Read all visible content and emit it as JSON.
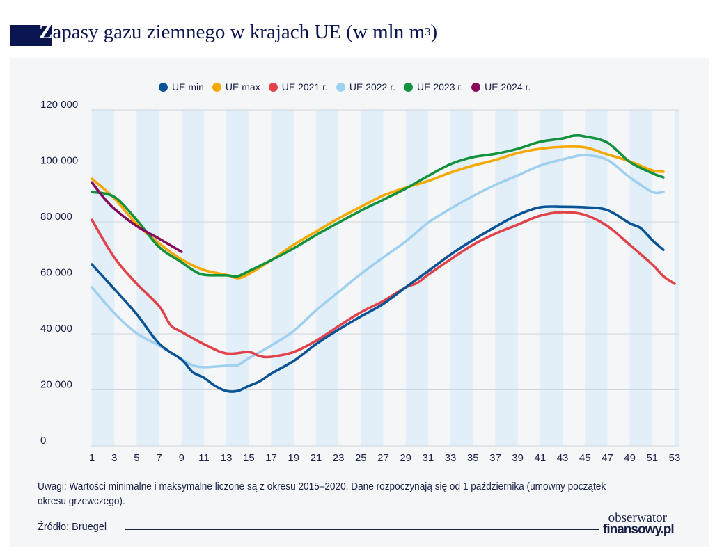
{
  "title": {
    "first_letter": "Z",
    "rest": "apasy gazu ziemnego w krajach UE (w mln m",
    "superscript": "3",
    "closing": ")"
  },
  "note": "Uwagi: Wartości minimalne i maksymalne liczone są z okresu 2015–2020. Dane rozpoczynają się od 1 października (umowny początek okresu grzewczego).",
  "source": "Źródło: Bruegel",
  "logo": {
    "line1": "obserwator",
    "line2": "finansowy.pl"
  },
  "colors": {
    "background": "#f4f6f8",
    "stripe": "#e2eef8",
    "grid": "#cfd6de",
    "title": "#0b1650"
  },
  "chart_data": {
    "type": "line",
    "title": "Zapasy gazu ziemnego w krajach UE (w mln m3)",
    "xlabel": "",
    "ylabel": "",
    "xlim": [
      1,
      53
    ],
    "ylim": [
      0,
      120000
    ],
    "xticks": [
      "1",
      "3",
      "5",
      "7",
      "9",
      "11",
      "13",
      "15",
      "17",
      "19",
      "21",
      "23",
      "25",
      "27",
      "29",
      "31",
      "33",
      "35",
      "37",
      "39",
      "41",
      "43",
      "45",
      "47",
      "49",
      "51",
      "53"
    ],
    "yticks": [
      "0",
      "20 000",
      "40 000",
      "60 000",
      "80 000",
      "100 000",
      "120 000"
    ],
    "ytick_values": [
      0,
      20000,
      40000,
      60000,
      80000,
      100000,
      120000
    ],
    "grid": "horizontal",
    "legend_position": "top",
    "series": [
      {
        "name": "UE min",
        "color": "#0a5496",
        "x": [
          1,
          3,
          5,
          7,
          9,
          10,
          11,
          12,
          13,
          14,
          15,
          16,
          17,
          19,
          21,
          23,
          25,
          27,
          29,
          31,
          33,
          35,
          37,
          39,
          41,
          43,
          45,
          47,
          49,
          50,
          51,
          52
        ],
        "y": [
          64800,
          56000,
          47000,
          36500,
          30800,
          26300,
          24300,
          21400,
          19600,
          19600,
          21400,
          23100,
          25800,
          30300,
          36300,
          41500,
          46200,
          50700,
          56600,
          62400,
          68300,
          73500,
          78200,
          82500,
          85200,
          85400,
          85200,
          84200,
          79500,
          77700,
          73500,
          70000
        ]
      },
      {
        "name": "UE max",
        "color": "#f5a800",
        "x": [
          1,
          3,
          5,
          7,
          9,
          11,
          13,
          14,
          15,
          17,
          19,
          21,
          23,
          25,
          27,
          29,
          31,
          33,
          35,
          37,
          39,
          41,
          43,
          45,
          47,
          49,
          51,
          52
        ],
        "y": [
          95400,
          88400,
          79200,
          72300,
          66600,
          62800,
          61100,
          59900,
          61400,
          66300,
          71800,
          76500,
          81200,
          85400,
          89400,
          92200,
          94600,
          97600,
          100100,
          102100,
          104600,
          106100,
          106800,
          106600,
          104100,
          101600,
          98400,
          97900
        ]
      },
      {
        "name": "UE 2021 r.",
        "color": "#e0434a",
        "x": [
          1,
          3,
          5,
          7,
          8,
          9,
          11,
          13,
          15,
          16,
          17,
          19,
          21,
          23,
          25,
          27,
          29,
          30,
          31,
          33,
          35,
          37,
          39,
          41,
          43,
          45,
          47,
          49,
          51,
          52,
          53
        ],
        "y": [
          80700,
          67300,
          57900,
          49900,
          43200,
          40700,
          36300,
          33000,
          33500,
          32000,
          31800,
          33500,
          37500,
          42700,
          47700,
          51700,
          56600,
          58100,
          61100,
          66600,
          71800,
          75800,
          79000,
          82200,
          83500,
          82500,
          78500,
          71800,
          64800,
          60600,
          57900
        ]
      },
      {
        "name": "UE 2022 r.",
        "color": "#9fd0ef",
        "x": [
          1,
          3,
          5,
          7,
          9,
          10,
          11,
          13,
          14,
          15,
          17,
          19,
          21,
          23,
          25,
          27,
          29,
          31,
          33,
          35,
          37,
          39,
          41,
          43,
          45,
          47,
          49,
          51,
          52
        ],
        "y": [
          56600,
          47400,
          40200,
          35800,
          31000,
          28800,
          28100,
          28600,
          28800,
          31300,
          35800,
          41000,
          48400,
          54900,
          61400,
          67300,
          73000,
          79700,
          84700,
          89200,
          93200,
          96600,
          100100,
          102300,
          103800,
          102100,
          95900,
          90700,
          90700
        ]
      },
      {
        "name": "UE 2023 r.",
        "color": "#12923c",
        "x": [
          1,
          3,
          5,
          7,
          9,
          10,
          11,
          13,
          14,
          15,
          17,
          19,
          21,
          23,
          25,
          27,
          29,
          31,
          33,
          35,
          37,
          39,
          41,
          43,
          44,
          45,
          47,
          49,
          51,
          52
        ],
        "y": [
          90700,
          88900,
          80700,
          71000,
          65600,
          62800,
          61100,
          60900,
          60600,
          62400,
          66300,
          70500,
          75300,
          79700,
          84000,
          87900,
          91900,
          96400,
          100600,
          103100,
          104300,
          106100,
          108600,
          109800,
          110800,
          110500,
          108300,
          101400,
          97400,
          95900
        ]
      },
      {
        "name": "UE 2024 r.",
        "color": "#870c5c",
        "x": [
          1,
          2,
          3,
          5,
          7,
          9
        ],
        "y": [
          94100,
          88900,
          84700,
          78500,
          74000,
          69300
        ]
      }
    ]
  }
}
